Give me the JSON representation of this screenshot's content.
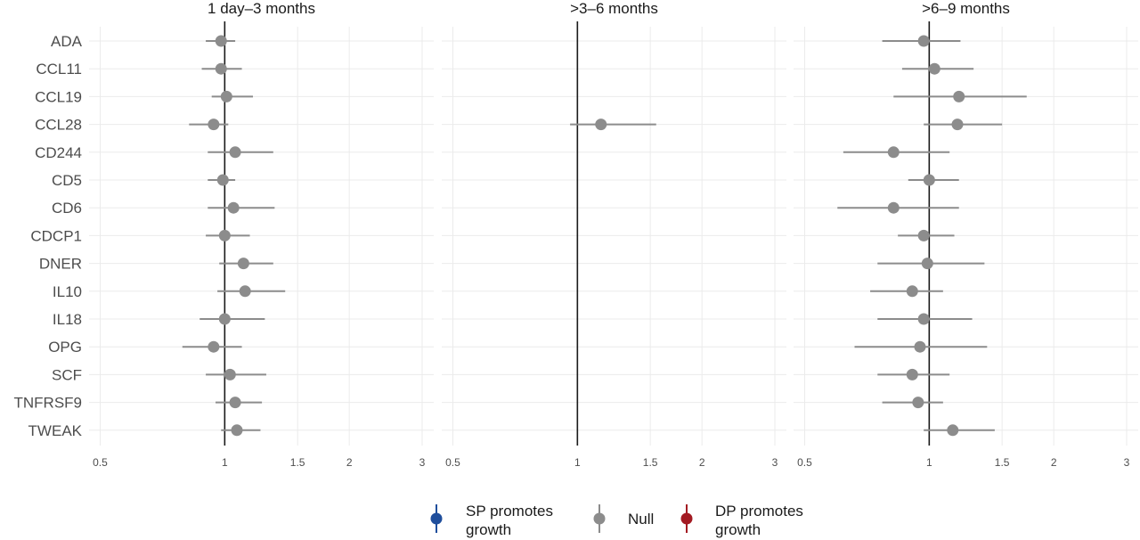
{
  "chart_data": {
    "type": "forest",
    "x_scale": "log",
    "xlim": [
      0.47,
      3.2
    ],
    "x_ticks": [
      0.5,
      1,
      1.5,
      2,
      3
    ],
    "x_tick_labels": [
      "0.5",
      "1",
      "1.5",
      "2",
      "3"
    ],
    "reference_line": 1,
    "grid": true,
    "categories": [
      "ADA",
      "CCL11",
      "CCL19",
      "CCL28",
      "CD244",
      "CD5",
      "CD6",
      "CDCP1",
      "DNER",
      "IL10",
      "IL18",
      "OPG",
      "SCF",
      "TNFRSF9",
      "TWEAK"
    ],
    "panels": [
      {
        "title": "1 day–3 months",
        "points": [
          {
            "label": "ADA",
            "estimate": 0.98,
            "lower": 0.9,
            "upper": 1.06,
            "group": "Null"
          },
          {
            "label": "CCL11",
            "estimate": 0.98,
            "lower": 0.88,
            "upper": 1.1,
            "group": "Null"
          },
          {
            "label": "CCL19",
            "estimate": 1.01,
            "lower": 0.93,
            "upper": 1.17,
            "group": "Null"
          },
          {
            "label": "CCL28",
            "estimate": 0.94,
            "lower": 0.82,
            "upper": 1.02,
            "group": "Null"
          },
          {
            "label": "CD244",
            "estimate": 1.06,
            "lower": 0.91,
            "upper": 1.31,
            "group": "Null"
          },
          {
            "label": "CD5",
            "estimate": 0.99,
            "lower": 0.91,
            "upper": 1.06,
            "group": "Null"
          },
          {
            "label": "CD6",
            "estimate": 1.05,
            "lower": 0.91,
            "upper": 1.32,
            "group": "Null"
          },
          {
            "label": "CDCP1",
            "estimate": 1.0,
            "lower": 0.9,
            "upper": 1.15,
            "group": "Null"
          },
          {
            "label": "DNER",
            "estimate": 1.11,
            "lower": 0.97,
            "upper": 1.31,
            "group": "Null"
          },
          {
            "label": "IL10",
            "estimate": 1.12,
            "lower": 0.96,
            "upper": 1.4,
            "group": "Null"
          },
          {
            "label": "IL18",
            "estimate": 1.0,
            "lower": 0.87,
            "upper": 1.25,
            "group": "Null"
          },
          {
            "label": "OPG",
            "estimate": 0.94,
            "lower": 0.79,
            "upper": 1.1,
            "group": "Null"
          },
          {
            "label": "SCF",
            "estimate": 1.03,
            "lower": 0.9,
            "upper": 1.26,
            "group": "Null"
          },
          {
            "label": "TNFRSF9",
            "estimate": 1.06,
            "lower": 0.95,
            "upper": 1.23,
            "group": "Null"
          },
          {
            "label": "TWEAK",
            "estimate": 1.07,
            "lower": 0.98,
            "upper": 1.22,
            "group": "Null"
          }
        ]
      },
      {
        "title": ">3–6 months",
        "points": [
          {
            "label": "CCL28",
            "estimate": 1.14,
            "lower": 0.96,
            "upper": 1.55,
            "group": "Null"
          }
        ]
      },
      {
        "title": ">6–9 months",
        "points": [
          {
            "label": "ADA",
            "estimate": 0.97,
            "lower": 0.77,
            "upper": 1.19,
            "group": "Null"
          },
          {
            "label": "CCL11",
            "estimate": 1.03,
            "lower": 0.86,
            "upper": 1.28,
            "group": "Null"
          },
          {
            "label": "CCL19",
            "estimate": 1.18,
            "lower": 0.82,
            "upper": 1.72,
            "group": "Null"
          },
          {
            "label": "CCL28",
            "estimate": 1.17,
            "lower": 0.97,
            "upper": 1.5,
            "group": "Null"
          },
          {
            "label": "CD244",
            "estimate": 0.82,
            "lower": 0.62,
            "upper": 1.12,
            "group": "Null"
          },
          {
            "label": "CD5",
            "estimate": 1.0,
            "lower": 0.89,
            "upper": 1.18,
            "group": "Null"
          },
          {
            "label": "CD6",
            "estimate": 0.82,
            "lower": 0.6,
            "upper": 1.18,
            "group": "Null"
          },
          {
            "label": "CDCP1",
            "estimate": 0.97,
            "lower": 0.84,
            "upper": 1.15,
            "group": "Null"
          },
          {
            "label": "DNER",
            "estimate": 0.99,
            "lower": 0.75,
            "upper": 1.36,
            "group": "Null"
          },
          {
            "label": "IL10",
            "estimate": 0.91,
            "lower": 0.72,
            "upper": 1.08,
            "group": "Null"
          },
          {
            "label": "IL18",
            "estimate": 0.97,
            "lower": 0.75,
            "upper": 1.27,
            "group": "Null"
          },
          {
            "label": "OPG",
            "estimate": 0.95,
            "lower": 0.66,
            "upper": 1.38,
            "group": "Null"
          },
          {
            "label": "SCF",
            "estimate": 0.91,
            "lower": 0.75,
            "upper": 1.12,
            "group": "Null"
          },
          {
            "label": "TNFRSF9",
            "estimate": 0.94,
            "lower": 0.77,
            "upper": 1.08,
            "group": "Null"
          },
          {
            "label": "TWEAK",
            "estimate": 1.14,
            "lower": 0.97,
            "upper": 1.44,
            "group": "Null"
          }
        ]
      }
    ],
    "legend": {
      "placement": "bottom",
      "items": [
        {
          "label": "SP promotes growth",
          "lines": [
            "SP promotes",
            "growth"
          ],
          "color": "#1f4e9c"
        },
        {
          "label": "Null",
          "lines": [
            "Null"
          ],
          "color": "#8c8c8c"
        },
        {
          "label": "DP promotes growth",
          "lines": [
            "DP promotes",
            "growth"
          ],
          "color": "#a31a22"
        }
      ]
    },
    "colors": {
      "Null": "#8c8c8c",
      "SP promotes growth": "#1f4e9c",
      "DP promotes growth": "#a31a22",
      "reference_line": "#1a1a1a",
      "grid": "#ebebeb"
    }
  }
}
